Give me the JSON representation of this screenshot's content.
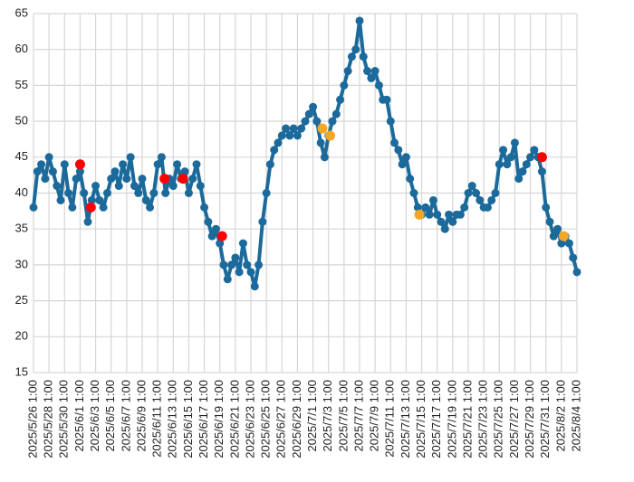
{
  "chart_data": {
    "type": "line",
    "ylim": [
      15,
      65
    ],
    "yticks": [
      15,
      20,
      25,
      30,
      35,
      40,
      45,
      50,
      55,
      60,
      65
    ],
    "grid": true,
    "xlim": [
      "2025/5/26 1:00",
      "2025/8/4 1:00"
    ],
    "xticks": [
      "2025/5/26 1:00",
      "2025/5/28 1:00",
      "2025/5/30 1:00",
      "2025/6/1 1:00",
      "2025/6/3 1:00",
      "2025/6/5 1:00",
      "2025/6/7 1:00",
      "2025/6/9 1:00",
      "2025/6/11 1:00",
      "2025/6/13 1:00",
      "2025/6/15 1:00",
      "2025/6/17 1:00",
      "2025/6/19 1:00",
      "2025/6/21 1:00",
      "2025/6/23 1:00",
      "2025/6/25 1:00",
      "2025/6/27 1:00",
      "2025/6/29 1:00",
      "2025/7/1 1:00",
      "2025/7/3 1:00",
      "2025/7/5 1:00",
      "2025/7/7 1:00",
      "2025/7/9 1:00",
      "2025/7/11 1:00",
      "2025/7/13 1:00",
      "2025/7/15 1:00",
      "2025/7/17 1:00",
      "2025/7/19 1:00",
      "2025/7/21 1:00",
      "2025/7/23 1:00",
      "2025/7/25 1:00",
      "2025/7/27 1:00",
      "2025/7/29 1:00",
      "2025/7/31 1:00",
      "2025/8/2 1:00",
      "2025/8/4 1:00"
    ],
    "series": [
      {
        "color": "#1b6a9b",
        "line": true,
        "x": [
          "2025/5/26 1:00",
          "2025/5/26 13:00",
          "2025/5/27 1:00",
          "2025/5/27 13:00",
          "2025/5/28 1:00",
          "2025/5/28 13:00",
          "2025/5/29 1:00",
          "2025/5/29 13:00",
          "2025/5/30 1:00",
          "2025/5/30 13:00",
          "2025/5/31 1:00",
          "2025/5/31 13:00",
          "2025/6/1 1:00",
          "2025/6/1 13:00",
          "2025/6/2 1:00",
          "2025/6/2 13:00",
          "2025/6/3 1:00",
          "2025/6/3 13:00",
          "2025/6/4 1:00",
          "2025/6/4 13:00",
          "2025/6/5 1:00",
          "2025/6/5 13:00",
          "2025/6/6 1:00",
          "2025/6/6 13:00",
          "2025/6/7 1:00",
          "2025/6/7 13:00",
          "2025/6/8 1:00",
          "2025/6/8 13:00",
          "2025/6/9 1:00",
          "2025/6/9 13:00",
          "2025/6/10 1:00",
          "2025/6/10 13:00",
          "2025/6/11 1:00",
          "2025/6/11 13:00",
          "2025/6/12 1:00",
          "2025/6/12 13:00",
          "2025/6/13 1:00",
          "2025/6/13 13:00",
          "2025/6/14 1:00",
          "2025/6/14 13:00",
          "2025/6/15 1:00",
          "2025/6/15 13:00",
          "2025/6/16 1:00",
          "2025/6/16 13:00",
          "2025/6/17 1:00",
          "2025/6/17 13:00",
          "2025/6/18 1:00",
          "2025/6/18 13:00",
          "2025/6/19 1:00",
          "2025/6/19 13:00",
          "2025/6/20 1:00",
          "2025/6/20 13:00",
          "2025/6/21 1:00",
          "2025/6/21 13:00",
          "2025/6/22 1:00",
          "2025/6/22 13:00",
          "2025/6/23 1:00",
          "2025/6/23 13:00",
          "2025/6/24 1:00",
          "2025/6/24 13:00",
          "2025/6/25 1:00",
          "2025/6/25 13:00",
          "2025/6/26 1:00",
          "2025/6/26 13:00",
          "2025/6/27 1:00",
          "2025/6/27 13:00",
          "2025/6/28 1:00",
          "2025/6/28 13:00",
          "2025/6/29 1:00",
          "2025/6/29 13:00",
          "2025/6/30 1:00",
          "2025/6/30 13:00",
          "2025/7/1 1:00",
          "2025/7/1 13:00",
          "2025/7/2 1:00",
          "2025/7/2 13:00",
          "2025/7/3 1:00",
          "2025/7/3 13:00",
          "2025/7/4 1:00",
          "2025/7/4 13:00",
          "2025/7/5 1:00",
          "2025/7/5 13:00",
          "2025/7/6 1:00",
          "2025/7/6 13:00",
          "2025/7/7 1:00",
          "2025/7/7 13:00",
          "2025/7/8 1:00",
          "2025/7/8 13:00",
          "2025/7/9 1:00",
          "2025/7/9 13:00",
          "2025/7/10 1:00",
          "2025/7/10 13:00",
          "2025/7/11 1:00",
          "2025/7/11 13:00",
          "2025/7/12 1:00",
          "2025/7/12 13:00",
          "2025/7/13 1:00",
          "2025/7/13 13:00",
          "2025/7/14 1:00",
          "2025/7/14 13:00",
          "2025/7/15 1:00",
          "2025/7/15 13:00",
          "2025/7/16 1:00",
          "2025/7/16 13:00",
          "2025/7/17 1:00",
          "2025/7/17 13:00",
          "2025/7/18 1:00",
          "2025/7/18 13:00",
          "2025/7/19 1:00",
          "2025/7/19 13:00",
          "2025/7/20 1:00",
          "2025/7/20 13:00",
          "2025/7/21 1:00",
          "2025/7/21 13:00",
          "2025/7/22 1:00",
          "2025/7/22 13:00",
          "2025/7/23 1:00",
          "2025/7/23 13:00",
          "2025/7/24 1:00",
          "2025/7/24 13:00",
          "2025/7/25 1:00",
          "2025/7/25 13:00",
          "2025/7/26 1:00",
          "2025/7/26 13:00",
          "2025/7/27 1:00",
          "2025/7/27 13:00",
          "2025/7/28 1:00",
          "2025/7/28 13:00",
          "2025/7/29 1:00",
          "2025/7/29 13:00",
          "2025/7/30 1:00",
          "2025/7/30 13:00",
          "2025/7/31 1:00",
          "2025/7/31 13:00",
          "2025/8/1 1:00",
          "2025/8/1 13:00",
          "2025/8/2 1:00",
          "2025/8/2 13:00",
          "2025/8/3 1:00",
          "2025/8/3 13:00",
          "2025/8/4 1:00"
        ],
        "values": [
          38,
          43,
          44,
          42,
          45,
          43,
          41,
          39,
          44,
          40,
          38,
          42,
          43,
          40,
          36,
          39,
          41,
          39,
          38,
          40,
          42,
          43,
          41,
          44,
          42,
          45,
          41,
          40,
          42,
          39,
          38,
          40,
          44,
          45,
          40,
          42,
          41,
          44,
          42,
          43,
          40,
          42,
          44,
          41,
          38,
          36,
          34,
          35,
          33,
          30,
          28,
          30,
          31,
          29,
          33,
          30,
          29,
          27,
          30,
          36,
          40,
          44,
          46,
          47,
          48,
          49,
          48,
          49,
          48,
          49,
          50,
          51,
          52,
          50,
          47,
          45,
          48,
          50,
          51,
          53,
          55,
          57,
          59,
          60,
          64,
          59,
          57,
          56,
          57,
          55,
          53,
          53,
          50,
          47,
          46,
          44,
          45,
          42,
          40,
          38,
          37,
          38,
          37,
          39,
          37,
          36,
          35,
          37,
          36,
          37,
          37,
          38,
          40,
          41,
          40,
          39,
          38,
          38,
          39,
          40,
          44,
          46,
          44,
          45,
          47,
          42,
          43,
          44,
          45,
          46,
          45,
          43,
          38,
          36,
          34,
          35,
          33,
          34,
          33,
          31,
          29
        ]
      },
      {
        "color": "#ff0000",
        "line": false,
        "x": [
          "2025/6/1 1:00",
          "2025/6/2 10:00",
          "2025/6/11 22:00",
          "2025/6/14 7:00",
          "2025/6/19 8:00",
          "2025/7/30 13:00"
        ],
        "values": [
          44,
          38,
          42,
          42,
          34,
          45
        ]
      },
      {
        "color": "#f5a623",
        "line": false,
        "x": [
          "2025/7/2 6:00",
          "2025/7/3 6:00",
          "2025/7/14 18:00",
          "2025/8/2 8:00"
        ],
        "values": [
          49,
          48,
          37,
          34
        ]
      }
    ]
  }
}
